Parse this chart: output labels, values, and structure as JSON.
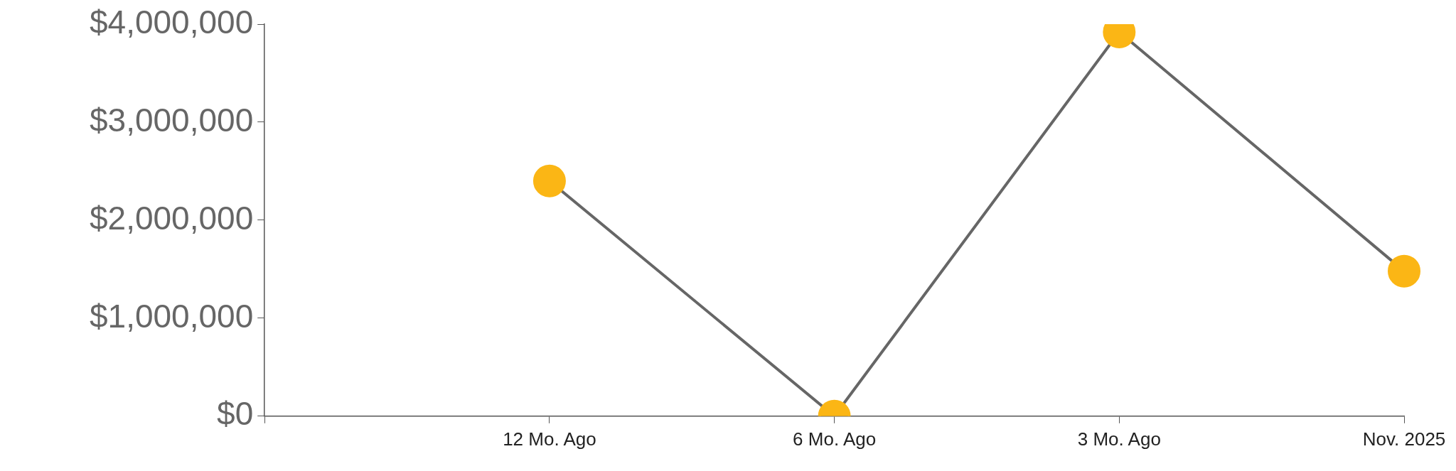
{
  "chart_data": {
    "type": "line",
    "categories": [
      null,
      "12 Mo. Ago",
      "6 Mo. Ago",
      "3 Mo. Ago",
      "Nov. 2025"
    ],
    "series": [
      {
        "color": "#fbb615",
        "values": [
          null,
          2400000,
          0,
          3920000,
          1480000
        ]
      }
    ],
    "ylim": [
      0,
      4000000
    ],
    "yticks": [
      {
        "value": 0,
        "label": "$0"
      },
      {
        "value": 1000000,
        "label": "$1,000,000"
      },
      {
        "value": 2000000,
        "label": "$2,000,000"
      },
      {
        "value": 3000000,
        "label": "$3,000,000"
      },
      {
        "value": 4000000,
        "label": "$4,000,000"
      }
    ],
    "grid": false,
    "legend": false,
    "marker": "circle",
    "line_style": "solid"
  }
}
